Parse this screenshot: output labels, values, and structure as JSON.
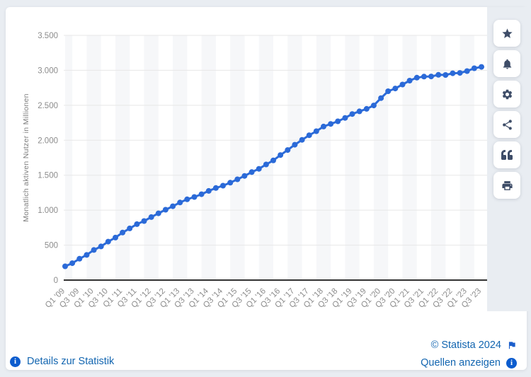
{
  "page": {
    "background": "#e9edf2",
    "card_background": "#ffffff"
  },
  "chart_data": {
    "type": "line",
    "title": "",
    "xlabel": "",
    "ylabel": "Monatlich aktiven Nutzer in Millionen",
    "x": [
      "Q1 '09",
      "Q2 '09",
      "Q3 '09",
      "Q4 '09",
      "Q1 '10",
      "Q2 '10",
      "Q3 '10",
      "Q4 '10",
      "Q1 '11",
      "Q2 '11",
      "Q3 '11",
      "Q4 '11",
      "Q1 '12",
      "Q2 '12",
      "Q3 '12",
      "Q4 '12",
      "Q1 '13",
      "Q2 '13",
      "Q3 '13",
      "Q4 '13",
      "Q1 '14",
      "Q2 '14",
      "Q3 '14",
      "Q4 '14",
      "Q1 '15",
      "Q2 '15",
      "Q3 '15",
      "Q4 '15",
      "Q1 '16",
      "Q2 '16",
      "Q3 '16",
      "Q4 '16",
      "Q1 '17",
      "Q2 '17",
      "Q3 '17",
      "Q4 '17",
      "Q1 '18",
      "Q2 '18",
      "Q3 '18",
      "Q4 '18",
      "Q1 '19",
      "Q2 '19",
      "Q3 '19",
      "Q4 '19",
      "Q1 '20",
      "Q2 '20",
      "Q3 '20",
      "Q4 '20",
      "Q1 '21",
      "Q2 '21",
      "Q3 '21",
      "Q4 '21",
      "Q1 '22",
      "Q2 '22",
      "Q3 '22",
      "Q4 '22",
      "Q1 '23",
      "Q2 '23",
      "Q3 '23"
    ],
    "series": [
      {
        "name": "Monatlich aktive Nutzer",
        "color": "#2b6ad8",
        "values": [
          197,
          242,
          305,
          360,
          431,
          482,
          550,
          608,
          680,
          739,
          800,
          845,
          901,
          955,
          1007,
          1056,
          1110,
          1155,
          1189,
          1228,
          1276,
          1317,
          1350,
          1393,
          1441,
          1490,
          1545,
          1591,
          1654,
          1712,
          1788,
          1860,
          1936,
          2006,
          2072,
          2129,
          2196,
          2234,
          2271,
          2320,
          2375,
          2414,
          2449,
          2498,
          2603,
          2701,
          2740,
          2797,
          2853,
          2895,
          2910,
          2912,
          2936,
          2934,
          2958,
          2963,
          2989,
          3030,
          3049
        ]
      }
    ],
    "ylim": [
      0,
      3500
    ],
    "y_ticks": [
      "0",
      "500",
      "1.000",
      "1.500",
      "2.000",
      "2.500",
      "3.000",
      "3.500"
    ],
    "y_tick_values": [
      0,
      500,
      1000,
      1500,
      2000,
      2500,
      3000,
      3500
    ],
    "x_tick_every": 2,
    "grid": "horizontal",
    "legend": "none",
    "marker": "circle",
    "band_stripes": true
  },
  "sidebar": {
    "buttons": [
      {
        "name": "favorite",
        "icon": "star-icon"
      },
      {
        "name": "notifications",
        "icon": "bell-icon"
      },
      {
        "name": "settings",
        "icon": "gear-icon"
      },
      {
        "name": "share",
        "icon": "share-icon"
      },
      {
        "name": "cite",
        "icon": "quote-icon"
      },
      {
        "name": "print",
        "icon": "printer-icon"
      }
    ]
  },
  "footer": {
    "details_label": "Details zur Statistik",
    "copyright_label": "© Statista 2024",
    "sources_label": "Quellen anzeigen"
  },
  "icons": {
    "info_glyph": "i"
  },
  "colors": {
    "line": "#2b6ad8",
    "link_text": "#1265b0",
    "icon_blue": "#0c5cce",
    "sidebar_icon": "#3e4d68",
    "axis_text": "#8c8c8c",
    "gridline": "#e7e7e7",
    "axis_line": "#323232",
    "stripe": "#f6f7f9"
  }
}
